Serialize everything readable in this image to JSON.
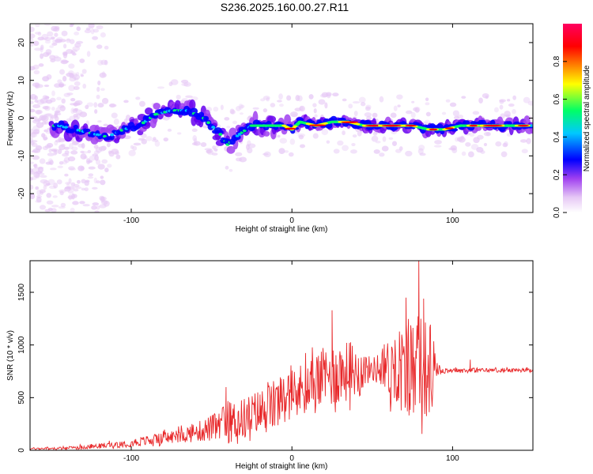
{
  "title": "S236.2025.160.00.27.R11",
  "chart_data": [
    {
      "type": "heatmap",
      "xlabel": "Height of straight line (km)",
      "ylabel": "Frequency (Hz)",
      "xlim": [
        -163,
        150
      ],
      "ylim": [
        -25,
        25
      ],
      "xticks": [
        -100,
        0,
        100
      ],
      "yticks": [
        -20,
        -10,
        0,
        10,
        20
      ],
      "colorbar": {
        "label": "Normalized spectral amplitude",
        "range": [
          0,
          1
        ],
        "ticks": [
          0.0,
          0.2,
          0.4,
          0.6,
          0.8
        ],
        "colors": [
          "#ffffff",
          "#e6c8f5",
          "#a040f0",
          "#6600ee",
          "#0000ff",
          "#00c8ff",
          "#00ff66",
          "#ffff00",
          "#ff8000",
          "#ff0000",
          "#ff0060"
        ]
      },
      "ridge": {
        "x": [
          -145,
          -135,
          -125,
          -115,
          -105,
          -95,
          -85,
          -75,
          -65,
          -55,
          -45,
          -40,
          -35,
          -25,
          -15,
          -5,
          0,
          5,
          15,
          25,
          35,
          45,
          55,
          65,
          75,
          85,
          95,
          105,
          115,
          125,
          135,
          145
        ],
        "y": [
          -2,
          -3,
          -4,
          -5,
          -3,
          -2,
          1,
          2,
          2,
          0,
          -4,
          -7,
          -5,
          -2,
          -2,
          -2,
          -3,
          -1,
          -2,
          -1,
          -1,
          -2,
          -2,
          -2,
          -2,
          -3,
          -3,
          -2,
          -2,
          -2,
          -2,
          -2
        ]
      }
    },
    {
      "type": "line",
      "xlabel": "Height of straight line (km)",
      "ylabel": "SNR (10 * v/v)",
      "xlim": [
        -163,
        150
      ],
      "ylim": [
        0,
        1800
      ],
      "xticks": [
        -100,
        0,
        100
      ],
      "yticks": [
        0,
        500,
        1000,
        1500
      ],
      "color": "#e8282a",
      "envelope": {
        "x": [
          -163,
          -140,
          -120,
          -100,
          -80,
          -60,
          -45,
          -40,
          -30,
          -20,
          -10,
          0,
          10,
          20,
          30,
          40,
          50,
          60,
          68,
          72,
          75,
          78,
          80,
          82,
          86,
          90,
          95,
          100,
          110,
          120,
          130,
          140,
          150
        ],
        "base": [
          15,
          20,
          40,
          70,
          110,
          170,
          230,
          260,
          300,
          360,
          430,
          520,
          600,
          680,
          740,
          760,
          770,
          770,
          780,
          780,
          780,
          780,
          780,
          780,
          770,
          760,
          760,
          760,
          760,
          760,
          760,
          760,
          760
        ],
        "spread": [
          10,
          15,
          25,
          40,
          60,
          90,
          150,
          200,
          200,
          230,
          250,
          250,
          280,
          300,
          310,
          250,
          100,
          300,
          420,
          500,
          480,
          500,
          520,
          480,
          480,
          60,
          30,
          25,
          25,
          20,
          20,
          20,
          20
        ]
      },
      "peaks": [
        {
          "x": -41,
          "y": 600
        },
        {
          "x": 25,
          "y": 1330
        },
        {
          "x": 71,
          "y": 1450
        },
        {
          "x": 79,
          "y": 1800
        },
        {
          "x": 82,
          "y": 1440
        },
        {
          "x": 111,
          "y": 860
        }
      ]
    }
  ]
}
